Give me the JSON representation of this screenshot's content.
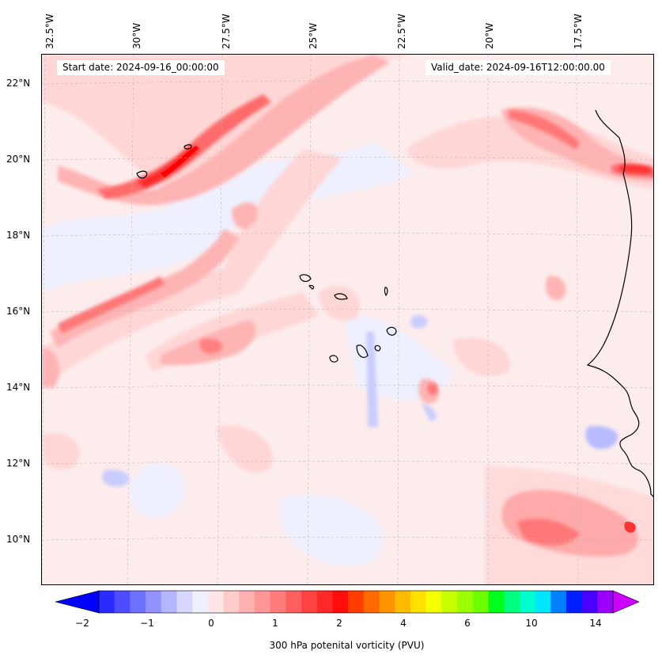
{
  "map": {
    "start_date": "Start date: 2024-09-16_00:00:00",
    "valid_date": "Valid_date: 2024-09-16T12:00:00.00",
    "lon_labels": [
      "32.5°W",
      "30°W",
      "27.5°W",
      "25°W",
      "22.5°W",
      "20°W",
      "17.5°W"
    ],
    "lat_labels": [
      "22°N",
      "20°N",
      "18°N",
      "16°N",
      "14°N",
      "12°N",
      "10°N"
    ],
    "field": "300 hPa potenital vorticity (PVU)"
  },
  "colorbar": {
    "label": "300 hPa potenital vorticity (PVU)",
    "tick_labels": [
      "−2",
      "−1",
      "0",
      "1",
      "2",
      "4",
      "6",
      "10",
      "14"
    ],
    "colors": [
      "#2b2bff",
      "#4d4dff",
      "#7070ff",
      "#9292ff",
      "#b4b4ff",
      "#d6d6ff",
      "#efefff",
      "#ffe6e6",
      "#ffcccc",
      "#ffb0b0",
      "#ff9595",
      "#ff7a7a",
      "#ff5f5f",
      "#ff4343",
      "#ff2828",
      "#ff0d0d",
      "#ff3d00",
      "#ff6a00",
      "#ff9400",
      "#ffbb00",
      "#ffe100",
      "#f4ff00",
      "#c8ff00",
      "#9aff00",
      "#6bff00",
      "#00ff1a",
      "#00ff80",
      "#00ffcc",
      "#00e5ff",
      "#0080ff",
      "#0020ff",
      "#4a00ff",
      "#9b00ff"
    ],
    "min_color": "#0000ff",
    "max_color": "#cc00ff"
  }
}
